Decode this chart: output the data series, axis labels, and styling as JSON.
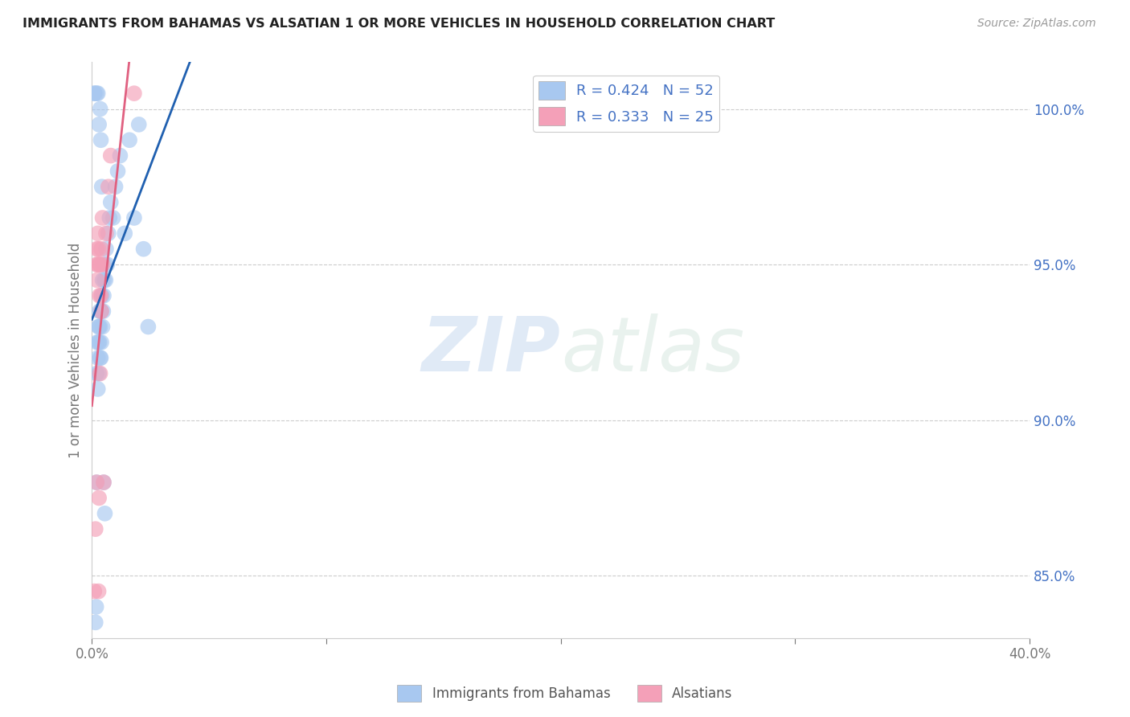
{
  "title": "IMMIGRANTS FROM BAHAMAS VS ALSATIAN 1 OR MORE VEHICLES IN HOUSEHOLD CORRELATION CHART",
  "source": "Source: ZipAtlas.com",
  "ylabel": "1 or more Vehicles in Household",
  "xlim": [
    0.0,
    40.0
  ],
  "ylim": [
    83.0,
    101.5
  ],
  "x_ticks": [
    0.0,
    10.0,
    20.0,
    30.0,
    40.0
  ],
  "x_tick_labels": [
    "0.0%",
    "",
    "",
    "",
    "40.0%"
  ],
  "y_ticks": [
    85.0,
    90.0,
    95.0,
    100.0
  ],
  "y_tick_labels": [
    "85.0%",
    "90.0%",
    "95.0%",
    "100.0%"
  ],
  "watermark_zip": "ZIP",
  "watermark_atlas": "atlas",
  "legend_r_blue": "R = 0.424",
  "legend_n_blue": "N = 52",
  "legend_r_pink": "R = 0.333",
  "legend_n_pink": "N = 25",
  "blue_color": "#A8C8F0",
  "pink_color": "#F4A0B8",
  "blue_line_color": "#2060B0",
  "pink_line_color": "#E06080",
  "blue_dash_color": "#B0C8E8",
  "background_color": "#FFFFFF",
  "grid_color": "#CCCCCC",
  "blue_x": [
    0.15,
    0.18,
    0.2,
    0.2,
    0.22,
    0.25,
    0.25,
    0.28,
    0.28,
    0.3,
    0.3,
    0.32,
    0.32,
    0.35,
    0.35,
    0.38,
    0.38,
    0.4,
    0.4,
    0.42,
    0.45,
    0.45,
    0.48,
    0.5,
    0.52,
    0.55,
    0.58,
    0.6,
    0.65,
    0.7,
    0.75,
    0.8,
    0.9,
    1.0,
    1.1,
    1.2,
    1.4,
    1.6,
    1.8,
    2.0,
    2.2,
    2.4,
    0.1,
    0.12,
    0.2,
    0.25,
    0.3,
    0.35,
    0.38,
    0.42,
    0.5,
    0.55
  ],
  "blue_y": [
    83.5,
    84.0,
    88.0,
    91.5,
    92.5,
    91.0,
    92.0,
    93.0,
    92.5,
    93.0,
    91.5,
    92.5,
    93.5,
    92.0,
    93.0,
    93.5,
    92.0,
    93.5,
    92.5,
    94.0,
    93.0,
    94.5,
    93.5,
    94.0,
    94.5,
    95.0,
    94.5,
    95.5,
    95.0,
    96.0,
    96.5,
    97.0,
    96.5,
    97.5,
    98.0,
    98.5,
    96.0,
    99.0,
    96.5,
    99.5,
    95.5,
    93.0,
    100.5,
    100.5,
    100.5,
    100.5,
    99.5,
    100.0,
    99.0,
    97.5,
    88.0,
    87.0
  ],
  "pink_x": [
    0.1,
    0.15,
    0.2,
    0.2,
    0.22,
    0.25,
    0.28,
    0.3,
    0.32,
    0.35,
    0.38,
    0.4,
    0.45,
    0.5,
    0.6,
    0.7,
    0.8,
    0.2,
    0.25,
    0.28,
    0.32,
    0.35,
    0.4,
    0.45,
    1.8
  ],
  "pink_y": [
    84.5,
    86.5,
    88.0,
    95.0,
    94.5,
    96.0,
    95.5,
    87.5,
    95.0,
    91.5,
    94.0,
    93.5,
    95.0,
    88.0,
    96.0,
    97.5,
    98.5,
    95.5,
    95.0,
    84.5,
    94.0,
    95.0,
    95.5,
    96.5,
    100.5
  ]
}
